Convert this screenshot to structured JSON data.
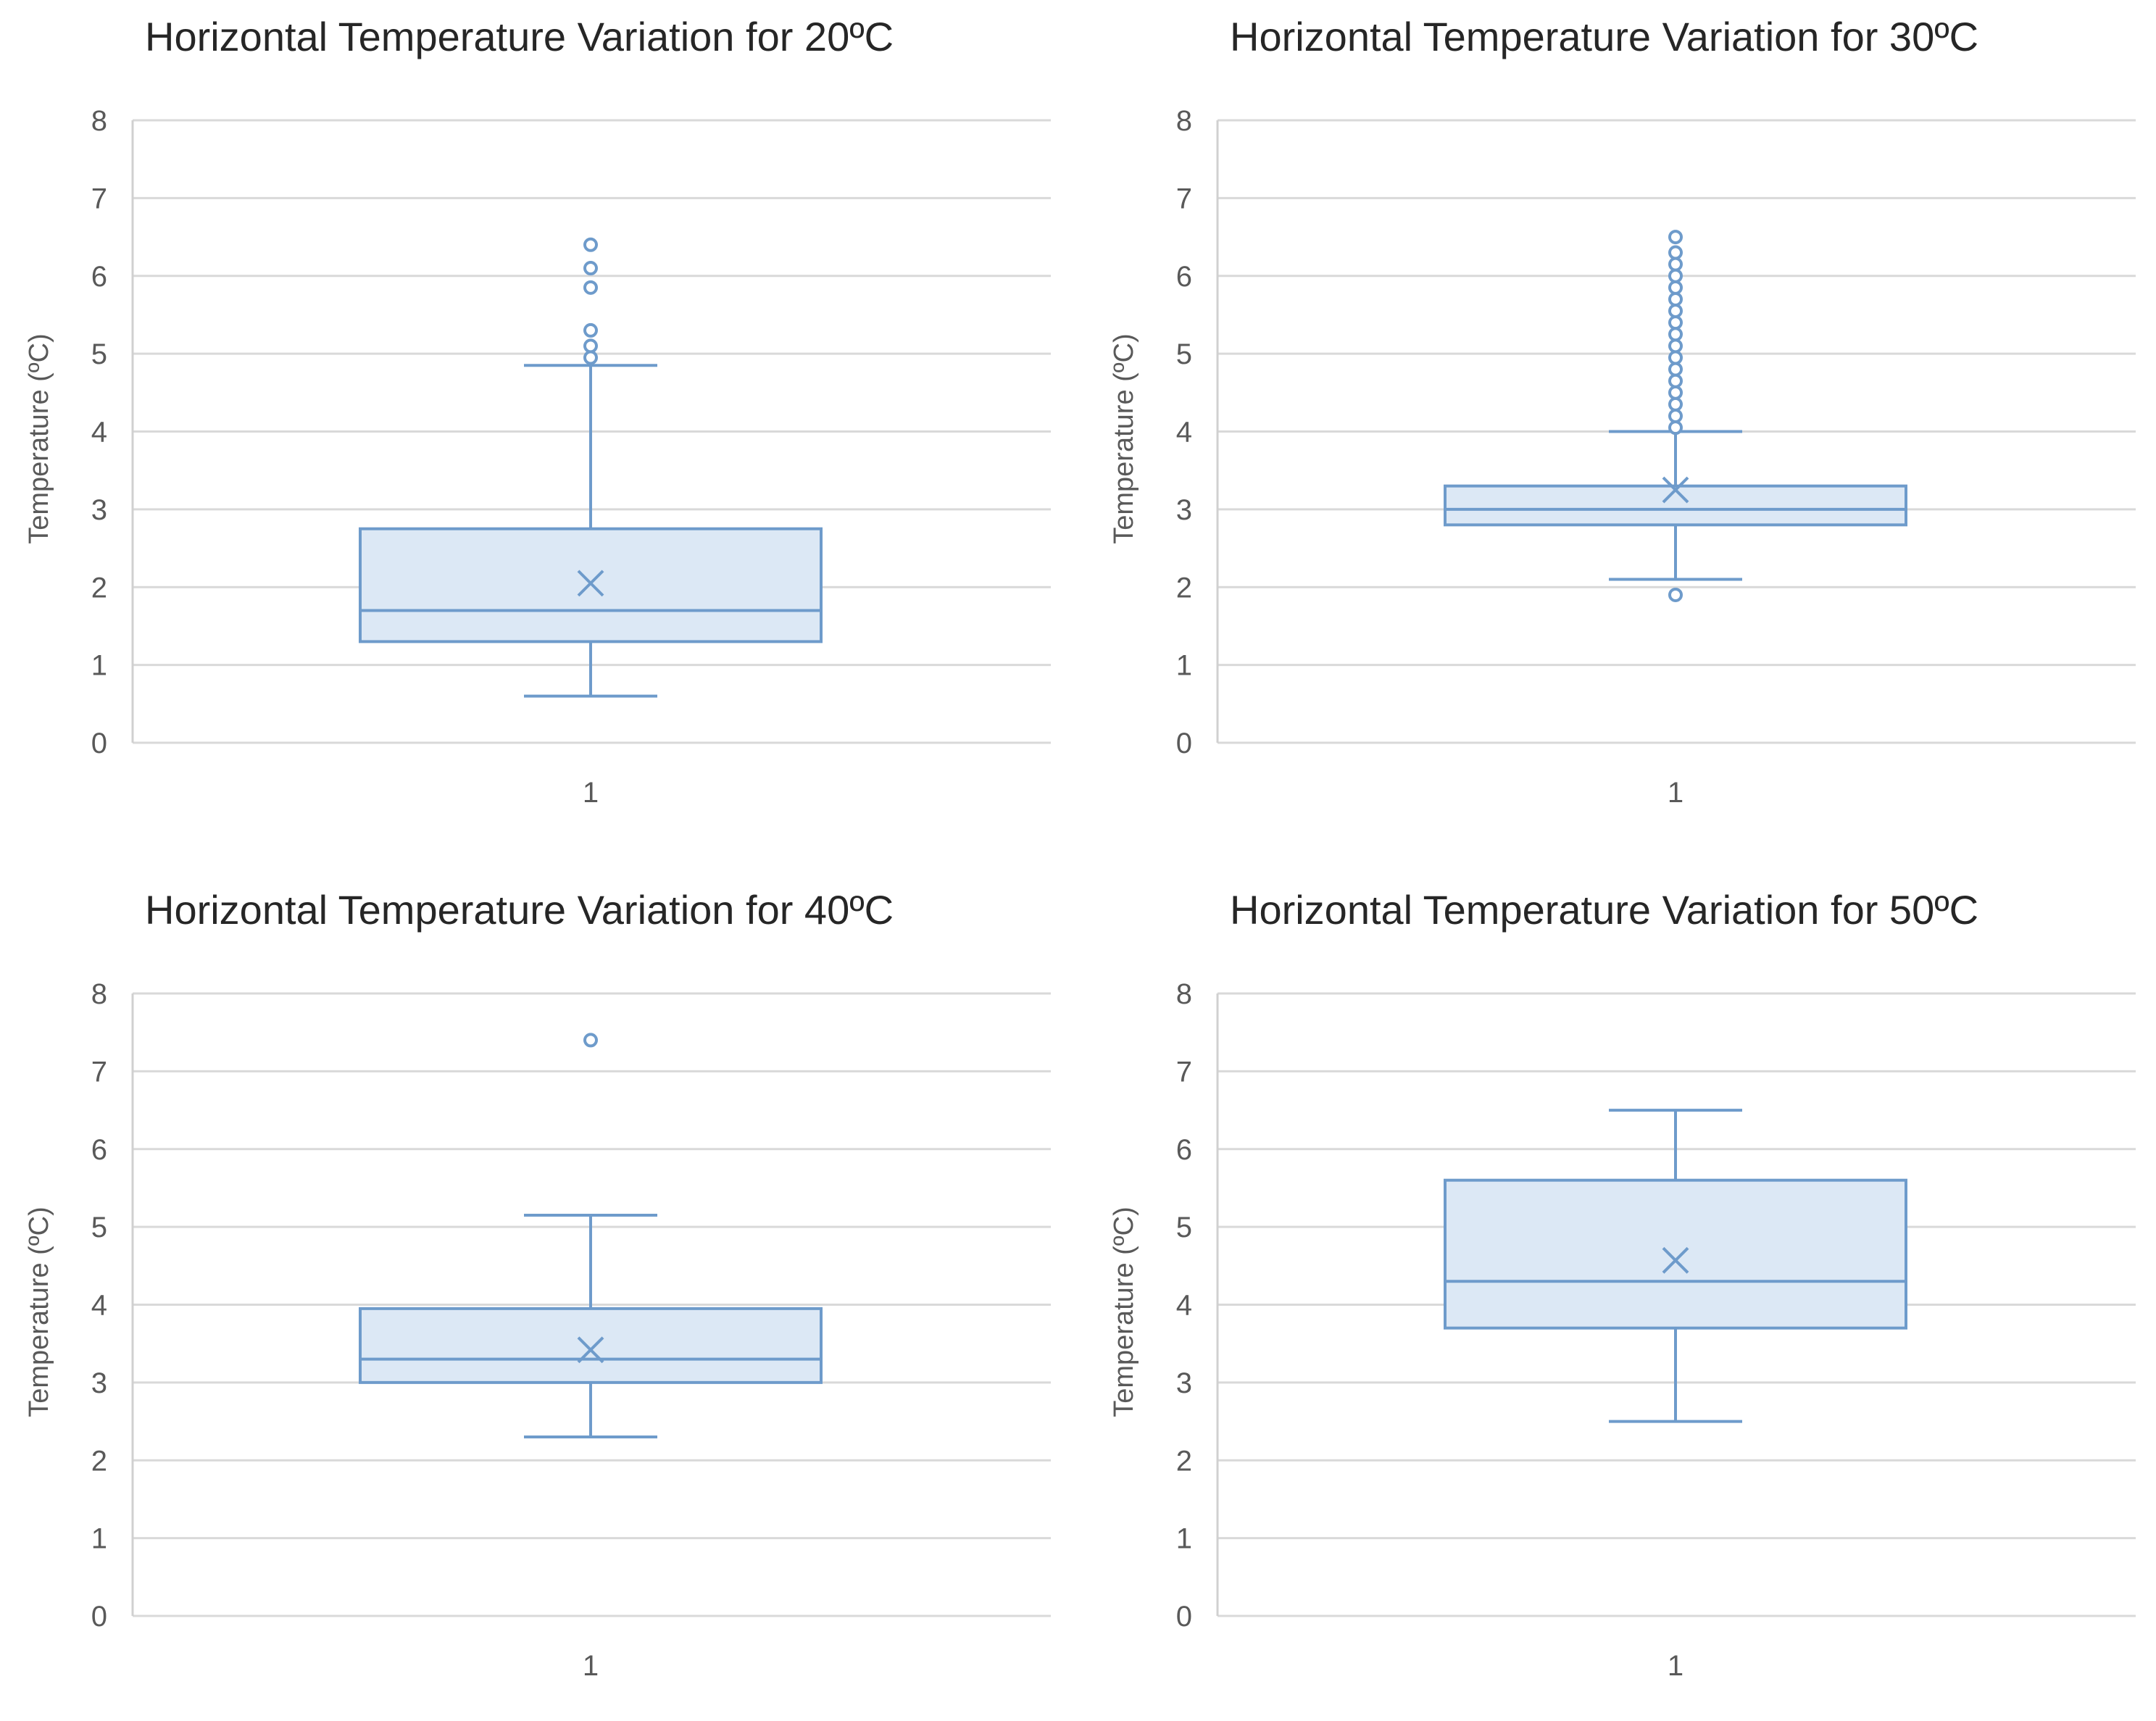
{
  "chart_data": [
    {
      "type": "boxplot",
      "title": "Horizontal Temperature Variation for 20ºC",
      "ylabel": "Temperature (ºC)",
      "xlabel": "",
      "categories": [
        "1"
      ],
      "ylim": [
        0,
        8
      ],
      "yticks": [
        "0",
        "1",
        "2",
        "3",
        "4",
        "5",
        "6",
        "7",
        "8"
      ],
      "stats": {
        "min": 0.6,
        "q1": 1.3,
        "median": 1.7,
        "q3": 2.75,
        "max": 4.85,
        "mean": 2.05
      },
      "outliers": [
        4.95,
        5.1,
        5.3,
        5.85,
        6.1,
        6.4
      ]
    },
    {
      "type": "boxplot",
      "title": "Horizontal Temperature Variation for 30ºC",
      "ylabel": "Temperature (ºC)",
      "xlabel": "",
      "categories": [
        "1"
      ],
      "ylim": [
        0,
        8
      ],
      "yticks": [
        "0",
        "1",
        "2",
        "3",
        "4",
        "5",
        "6",
        "7",
        "8"
      ],
      "stats": {
        "min": 2.1,
        "q1": 2.8,
        "median": 3.0,
        "q3": 3.3,
        "max": 4.0,
        "mean": 3.25
      },
      "outliers": [
        1.9,
        4.05,
        4.2,
        4.35,
        4.5,
        4.65,
        4.8,
        4.95,
        5.1,
        5.25,
        5.4,
        5.55,
        5.7,
        5.85,
        6.0,
        6.15,
        6.3,
        6.5
      ]
    },
    {
      "type": "boxplot",
      "title": "Horizontal Temperature Variation for 40ºC",
      "ylabel": "Temperature (ºC)",
      "xlabel": "",
      "categories": [
        "1"
      ],
      "ylim": [
        0,
        8
      ],
      "yticks": [
        "0",
        "1",
        "2",
        "3",
        "4",
        "5",
        "6",
        "7",
        "8"
      ],
      "stats": {
        "min": 2.3,
        "q1": 3.0,
        "median": 3.3,
        "q3": 3.95,
        "max": 5.15,
        "mean": 3.42
      },
      "outliers": [
        7.4
      ]
    },
    {
      "type": "boxplot",
      "title": "Horizontal Temperature Variation for 50ºC",
      "ylabel": "Temperature (ºC)",
      "xlabel": "",
      "categories": [
        "1"
      ],
      "ylim": [
        0,
        8
      ],
      "yticks": [
        "0",
        "1",
        "2",
        "3",
        "4",
        "5",
        "6",
        "7",
        "8"
      ],
      "stats": {
        "min": 2.5,
        "q1": 3.7,
        "median": 4.3,
        "q3": 5.6,
        "max": 6.5,
        "mean": 4.57
      },
      "outliers": []
    }
  ]
}
